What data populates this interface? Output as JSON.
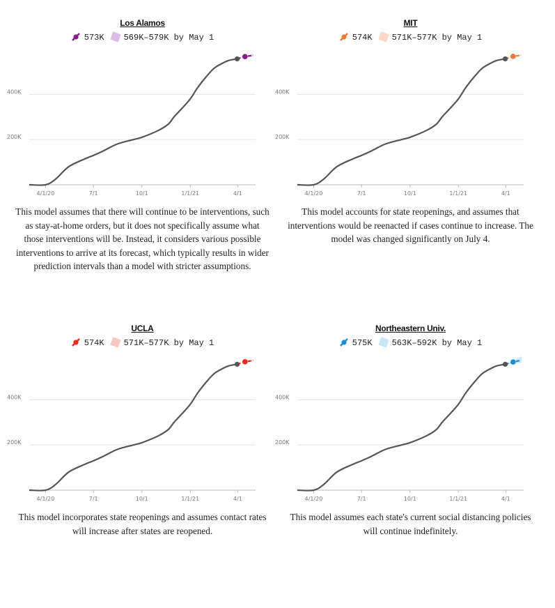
{
  "panels": [
    {
      "title": "Los Alamos",
      "legend": {
        "point": "573K",
        "range": "569K–579K by May 1"
      },
      "color": "#8b1a86",
      "range_color": "#d9bfe6",
      "description": "This model assumes that there will continue to be interventions, such as stay-at-home orders, but it does not specifically assume what those interventions will be. Instead, it considers various possible interventions to arrive at its forecast, which typically results in wider prediction intervals than a model with stricter assumptions."
    },
    {
      "title": "MIT",
      "legend": {
        "point": "574K",
        "range": "571K–577K by May 1"
      },
      "color": "#ea7a3c",
      "range_color": "#fbd8c6",
      "description": "This model accounts for state reopenings, and assumes that interventions would be reenacted if cases continue to increase. The model was changed significantly on July 4."
    },
    {
      "title": "UCLA",
      "legend": {
        "point": "574K",
        "range": "571K–577K by May 1"
      },
      "color": "#ea2c1a",
      "range_color": "#f8c8c4",
      "description": "This model incorporates state reopenings and assumes contact rates will increase after states are reopened."
    },
    {
      "title": "Northeastern Univ.",
      "legend": {
        "point": "575K",
        "range": "563K–592K by May 1"
      },
      "color": "#1b8ed3",
      "range_color": "#c8e6f6",
      "description": "This model assumes each state's current social distancing policies will continue indefinitely."
    }
  ],
  "chart_data": [
    {
      "type": "line",
      "title": "Los Alamos",
      "x_ticks": [
        "4/1/20",
        "7/1",
        "10/1",
        "1/1/21",
        "4/1"
      ],
      "y_ticks": [
        "200K",
        "400K"
      ],
      "ylim": [
        0,
        620000
      ],
      "xlim": [
        "2020-03-01",
        "2021-05-05"
      ],
      "grid": true,
      "series": [
        {
          "x": [
            "2020-03-01",
            "2020-04-01",
            "2020-04-20",
            "2020-05-15",
            "2020-06-15",
            "2020-07-01",
            "2020-07-20",
            "2020-08-15",
            "2020-09-15",
            "2020-10-01",
            "2020-11-01",
            "2020-11-20",
            "2020-12-01",
            "2020-12-15",
            "2021-01-01",
            "2021-01-15",
            "2021-02-01",
            "2021-02-15",
            "2021-03-01",
            "2021-03-15",
            "2021-03-31"
          ],
          "y": [
            0,
            0,
            25000,
            80000,
            115000,
            130000,
            150000,
            180000,
            200000,
            210000,
            240000,
            268000,
            300000,
            335000,
            380000,
            430000,
            480000,
            515000,
            535000,
            550000,
            557000
          ]
        },
        {
          "x": [
            "2021-03-31",
            "2021-04-15",
            "2021-05-01"
          ],
          "y": [
            557000,
            567000,
            573000
          ]
        }
      ],
      "interval": {
        "x": [
          "2021-03-31",
          "2021-05-01"
        ],
        "low": [
          557000,
          569000
        ],
        "high": [
          557000,
          579000
        ]
      }
    },
    {
      "type": "line",
      "title": "MIT",
      "x_ticks": [
        "4/1/20",
        "7/1",
        "10/1",
        "1/1/21",
        "4/1"
      ],
      "y_ticks": [
        "200K",
        "400K"
      ],
      "ylim": [
        0,
        620000
      ],
      "xlim": [
        "2020-03-01",
        "2021-05-05"
      ],
      "grid": true,
      "series": [
        {
          "x": [
            "2020-03-01",
            "2020-04-01",
            "2020-04-20",
            "2020-05-15",
            "2020-06-15",
            "2020-07-01",
            "2020-07-20",
            "2020-08-15",
            "2020-09-15",
            "2020-10-01",
            "2020-11-01",
            "2020-11-20",
            "2020-12-01",
            "2020-12-15",
            "2021-01-01",
            "2021-01-15",
            "2021-02-01",
            "2021-02-15",
            "2021-03-01",
            "2021-03-15",
            "2021-03-31"
          ],
          "y": [
            0,
            0,
            25000,
            80000,
            115000,
            130000,
            150000,
            180000,
            200000,
            210000,
            240000,
            268000,
            300000,
            335000,
            380000,
            430000,
            480000,
            515000,
            535000,
            550000,
            557000
          ]
        },
        {
          "x": [
            "2021-03-31",
            "2021-04-15",
            "2021-05-01"
          ],
          "y": [
            557000,
            568000,
            574000
          ]
        }
      ],
      "interval": {
        "x": [
          "2021-03-31",
          "2021-05-01"
        ],
        "low": [
          557000,
          571000
        ],
        "high": [
          557000,
          577000
        ]
      }
    },
    {
      "type": "line",
      "title": "UCLA",
      "x_ticks": [
        "4/1/20",
        "7/1",
        "10/1",
        "1/1/21",
        "4/1"
      ],
      "y_ticks": [
        "200K",
        "400K"
      ],
      "ylim": [
        0,
        620000
      ],
      "xlim": [
        "2020-03-01",
        "2021-05-05"
      ],
      "grid": true,
      "series": [
        {
          "x": [
            "2020-03-01",
            "2020-04-01",
            "2020-04-20",
            "2020-05-15",
            "2020-06-15",
            "2020-07-01",
            "2020-07-20",
            "2020-08-15",
            "2020-09-15",
            "2020-10-01",
            "2020-11-01",
            "2020-11-20",
            "2020-12-01",
            "2020-12-15",
            "2021-01-01",
            "2021-01-15",
            "2021-02-01",
            "2021-02-15",
            "2021-03-01",
            "2021-03-15",
            "2021-03-31"
          ],
          "y": [
            0,
            0,
            25000,
            80000,
            115000,
            130000,
            150000,
            180000,
            200000,
            210000,
            240000,
            268000,
            300000,
            335000,
            380000,
            430000,
            480000,
            515000,
            535000,
            550000,
            557000
          ]
        },
        {
          "x": [
            "2021-03-31",
            "2021-04-15",
            "2021-05-01"
          ],
          "y": [
            557000,
            568000,
            574000
          ]
        }
      ],
      "interval": {
        "x": [
          "2021-03-31",
          "2021-05-01"
        ],
        "low": [
          557000,
          571000
        ],
        "high": [
          557000,
          577000
        ]
      }
    },
    {
      "type": "line",
      "title": "Northeastern Univ.",
      "x_ticks": [
        "4/1/20",
        "7/1",
        "10/1",
        "1/1/21",
        "4/1"
      ],
      "y_ticks": [
        "200K",
        "400K"
      ],
      "ylim": [
        0,
        620000
      ],
      "xlim": [
        "2020-03-01",
        "2021-05-05"
      ],
      "grid": true,
      "series": [
        {
          "x": [
            "2020-03-01",
            "2020-04-01",
            "2020-04-20",
            "2020-05-15",
            "2020-06-15",
            "2020-07-01",
            "2020-07-20",
            "2020-08-15",
            "2020-09-15",
            "2020-10-01",
            "2020-11-01",
            "2020-11-20",
            "2020-12-01",
            "2020-12-15",
            "2021-01-01",
            "2021-01-15",
            "2021-02-01",
            "2021-02-15",
            "2021-03-01",
            "2021-03-15",
            "2021-03-31"
          ],
          "y": [
            0,
            0,
            25000,
            80000,
            115000,
            130000,
            150000,
            180000,
            200000,
            210000,
            240000,
            268000,
            300000,
            335000,
            380000,
            430000,
            480000,
            515000,
            535000,
            550000,
            557000
          ]
        },
        {
          "x": [
            "2021-03-31",
            "2021-04-15",
            "2021-05-01"
          ],
          "y": [
            557000,
            567000,
            575000
          ]
        }
      ],
      "interval": {
        "x": [
          "2021-03-31",
          "2021-05-01"
        ],
        "low": [
          557000,
          563000
        ],
        "high": [
          557000,
          592000
        ]
      }
    }
  ]
}
